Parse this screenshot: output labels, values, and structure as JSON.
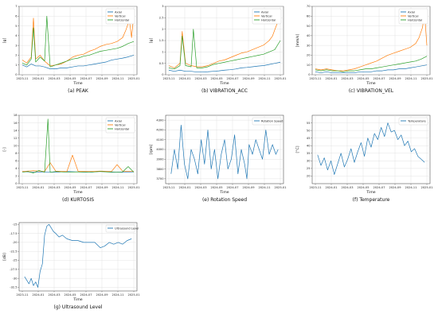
{
  "chart_data": [
    {
      "type": "line",
      "caption": "(a) PEAK",
      "xlabel": "Time",
      "ylabel": "[g]",
      "x_ticks": [
        "2023-11",
        "2024-01",
        "2024-03",
        "2024-05",
        "2024-07",
        "2024-09",
        "2024-11",
        "2025-01"
      ],
      "ylim": [
        0,
        7
      ],
      "y_ticks": [
        0,
        1,
        2,
        3,
        4,
        5,
        6,
        7
      ],
      "legend": "top-right",
      "grid": true,
      "series": [
        {
          "name": "Axial",
          "color": "#1f77b4",
          "t": [
            0,
            0.04,
            0.08,
            0.12,
            0.16,
            0.2,
            0.25,
            0.3,
            0.35,
            0.4,
            0.45,
            0.5,
            0.55,
            0.6,
            0.65,
            0.7,
            0.75,
            0.8,
            0.85,
            0.9,
            0.94,
            0.97,
            1.0
          ],
          "values": [
            1.0,
            0.8,
            1.1,
            0.9,
            0.9,
            0.8,
            0.6,
            0.6,
            0.7,
            0.7,
            0.8,
            0.9,
            0.9,
            1.0,
            1.1,
            1.2,
            1.3,
            1.5,
            1.6,
            1.7,
            1.8,
            1.9,
            2.0
          ]
        },
        {
          "name": "Vertical",
          "color": "#ff7f0e",
          "t": [
            0,
            0.04,
            0.08,
            0.1,
            0.12,
            0.16,
            0.2,
            0.25,
            0.3,
            0.35,
            0.4,
            0.45,
            0.5,
            0.55,
            0.6,
            0.65,
            0.7,
            0.75,
            0.8,
            0.85,
            0.9,
            0.93,
            0.96,
            0.98,
            1.0
          ],
          "values": [
            1.5,
            1.2,
            1.8,
            5.8,
            1.6,
            2.0,
            1.4,
            0.9,
            1.0,
            1.1,
            1.4,
            1.8,
            2.0,
            2.1,
            2.4,
            2.6,
            2.9,
            3.1,
            3.2,
            3.4,
            3.8,
            4.6,
            5.6,
            3.8,
            6.2
          ]
        },
        {
          "name": "Horizontal",
          "color": "#2ca02c",
          "t": [
            0,
            0.04,
            0.08,
            0.1,
            0.12,
            0.16,
            0.2,
            0.22,
            0.25,
            0.3,
            0.35,
            0.4,
            0.45,
            0.5,
            0.55,
            0.6,
            0.65,
            0.7,
            0.75,
            0.8,
            0.85,
            0.9,
            0.95,
            1.0
          ],
          "values": [
            1.2,
            1.0,
            1.6,
            4.8,
            1.3,
            1.8,
            1.4,
            6.0,
            0.8,
            1.0,
            1.2,
            1.4,
            1.6,
            1.7,
            1.9,
            2.0,
            2.2,
            2.4,
            2.5,
            2.6,
            2.7,
            2.9,
            3.2,
            3.4
          ]
        }
      ]
    },
    {
      "type": "line",
      "caption": "(b) VIBRATION_ACC",
      "xlabel": "Time",
      "ylabel": "[g]",
      "x_ticks": [
        "2023-11",
        "2024-01",
        "2024-03",
        "2024-05",
        "2024-07",
        "2024-09",
        "2024-11",
        "2025-01"
      ],
      "ylim": [
        0,
        3.0
      ],
      "y_ticks": [
        0.0,
        0.5,
        1.0,
        1.5,
        2.0,
        2.5,
        3.0
      ],
      "legend": "top-right",
      "grid": true,
      "series": [
        {
          "name": "Axial",
          "color": "#1f77b4",
          "t": [
            0,
            0.05,
            0.1,
            0.15,
            0.2,
            0.25,
            0.3,
            0.35,
            0.4,
            0.45,
            0.5,
            0.55,
            0.6,
            0.65,
            0.7,
            0.75,
            0.8,
            0.85,
            0.9,
            0.95,
            1.0
          ],
          "values": [
            0.2,
            0.15,
            0.2,
            0.15,
            0.15,
            0.12,
            0.12,
            0.13,
            0.15,
            0.17,
            0.2,
            0.22,
            0.25,
            0.3,
            0.32,
            0.35,
            0.38,
            0.4,
            0.45,
            0.5,
            0.55
          ]
        },
        {
          "name": "Vertical",
          "color": "#ff7f0e",
          "t": [
            0,
            0.05,
            0.1,
            0.12,
            0.15,
            0.2,
            0.25,
            0.3,
            0.35,
            0.4,
            0.45,
            0.5,
            0.55,
            0.6,
            0.65,
            0.7,
            0.75,
            0.8,
            0.85,
            0.9,
            0.93,
            0.96,
            1.0
          ],
          "values": [
            0.4,
            0.3,
            0.5,
            1.9,
            0.5,
            0.4,
            0.35,
            0.35,
            0.4,
            0.5,
            0.6,
            0.65,
            0.75,
            0.85,
            0.95,
            1.0,
            1.1,
            1.2,
            1.3,
            1.5,
            1.7,
            2.1,
            2.6
          ]
        },
        {
          "name": "Horizontal",
          "color": "#2ca02c",
          "t": [
            0,
            0.05,
            0.1,
            0.12,
            0.15,
            0.2,
            0.22,
            0.25,
            0.3,
            0.35,
            0.4,
            0.45,
            0.5,
            0.55,
            0.6,
            0.65,
            0.7,
            0.75,
            0.8,
            0.85,
            0.9,
            0.95,
            1.0
          ],
          "values": [
            0.3,
            0.25,
            0.4,
            1.7,
            0.4,
            0.35,
            2.0,
            0.3,
            0.3,
            0.35,
            0.45,
            0.5,
            0.55,
            0.6,
            0.65,
            0.7,
            0.75,
            0.8,
            0.85,
            0.9,
            1.0,
            1.1,
            1.5
          ]
        }
      ]
    },
    {
      "type": "line",
      "caption": "(c) VIBRATION_VEL",
      "xlabel": "Time",
      "ylabel": "[mm/s]",
      "x_ticks": [
        "2023-11",
        "2024-01",
        "2024-03",
        "2024-05",
        "2024-07",
        "2024-09",
        "2024-11",
        "2025-01"
      ],
      "ylim": [
        0,
        70
      ],
      "y_ticks": [
        0,
        10,
        20,
        30,
        40,
        50,
        60,
        70
      ],
      "legend": "top-right",
      "grid": true,
      "series": [
        {
          "name": "Axial",
          "color": "#1f77b4",
          "t": [
            0,
            0.05,
            0.1,
            0.15,
            0.2,
            0.25,
            0.3,
            0.35,
            0.4,
            0.45,
            0.5,
            0.55,
            0.6,
            0.65,
            0.7,
            0.75,
            0.8,
            0.85,
            0.9,
            0.95,
            1.0
          ],
          "values": [
            3,
            2,
            3,
            2,
            2,
            2,
            2,
            2,
            3,
            3,
            3,
            4,
            4,
            5,
            5,
            6,
            6,
            7,
            8,
            9,
            10
          ]
        },
        {
          "name": "Vertical",
          "color": "#ff7f0e",
          "t": [
            0,
            0.05,
            0.1,
            0.15,
            0.2,
            0.25,
            0.3,
            0.35,
            0.4,
            0.45,
            0.5,
            0.55,
            0.6,
            0.65,
            0.7,
            0.75,
            0.8,
            0.85,
            0.9,
            0.93,
            0.96,
            0.98,
            1.0
          ],
          "values": [
            6,
            5,
            6,
            5,
            4,
            4,
            5,
            6,
            8,
            10,
            12,
            14,
            17,
            20,
            22,
            24,
            26,
            28,
            32,
            38,
            48,
            62,
            30
          ]
        },
        {
          "name": "Horizontal",
          "color": "#2ca02c",
          "t": [
            0,
            0.05,
            0.1,
            0.15,
            0.2,
            0.25,
            0.3,
            0.35,
            0.4,
            0.45,
            0.5,
            0.55,
            0.6,
            0.65,
            0.7,
            0.75,
            0.8,
            0.85,
            0.9,
            0.95,
            1.0
          ],
          "values": [
            5,
            4,
            5,
            4,
            4,
            3,
            4,
            4,
            5,
            6,
            6,
            7,
            8,
            9,
            10,
            11,
            12,
            13,
            14,
            16,
            19
          ]
        }
      ]
    },
    {
      "type": "line",
      "caption": "(d) KURTOSIS",
      "xlabel": "Time",
      "ylabel": "[-]",
      "x_ticks": [
        "2023-11",
        "2024-01",
        "2024-03",
        "2024-05",
        "2024-07",
        "2024-09",
        "2024-11",
        "2025-01"
      ],
      "ylim": [
        0,
        18
      ],
      "y_ticks": [
        0,
        2,
        4,
        6,
        8,
        10,
        12,
        14,
        16,
        18
      ],
      "legend": "top-right",
      "grid": true,
      "series": [
        {
          "name": "Axial",
          "color": "#1f77b4",
          "t": [
            0,
            0.1,
            0.2,
            0.3,
            0.4,
            0.5,
            0.6,
            0.7,
            0.8,
            0.9,
            1.0
          ],
          "values": [
            3.2,
            3.0,
            3.1,
            3.0,
            3.2,
            3.1,
            3.0,
            3.2,
            3.1,
            3.0,
            3.1
          ]
        },
        {
          "name": "Vertical",
          "color": "#ff7f0e",
          "t": [
            0,
            0.1,
            0.2,
            0.25,
            0.3,
            0.4,
            0.45,
            0.5,
            0.6,
            0.7,
            0.8,
            0.85,
            0.9,
            1.0
          ],
          "values": [
            3.2,
            3.4,
            3.2,
            5.5,
            3.3,
            3.2,
            7.5,
            3.3,
            3.2,
            3.3,
            3.2,
            5.0,
            3.3,
            3.2
          ]
        },
        {
          "name": "Horizontal",
          "color": "#2ca02c",
          "t": [
            0,
            0.05,
            0.1,
            0.15,
            0.2,
            0.23,
            0.25,
            0.3,
            0.4,
            0.5,
            0.6,
            0.7,
            0.8,
            0.9,
            0.95,
            1.0
          ],
          "values": [
            3.0,
            3.2,
            2.8,
            3.5,
            3.0,
            17.0,
            3.0,
            3.2,
            3.0,
            3.1,
            3.0,
            3.2,
            3.0,
            3.1,
            4.5,
            3.0
          ]
        }
      ]
    },
    {
      "type": "line",
      "caption": "(e) Rotation Speed",
      "xlabel": "Time",
      "ylabel": "[rpm]",
      "x_ticks": [
        "2023-11",
        "2024-01",
        "2024-03",
        "2024-05",
        "2024-07",
        "2024-09",
        "2024-11",
        "2025-01"
      ],
      "ylim": [
        3650,
        4350
      ],
      "y_ticks": [
        3700,
        3800,
        3900,
        4000,
        4100,
        4200,
        4300
      ],
      "legend": "top-right",
      "grid": true,
      "series": [
        {
          "name": "Rotation Speed",
          "color": "#1f77b4",
          "t": [
            0.02,
            0.05,
            0.08,
            0.11,
            0.14,
            0.17,
            0.2,
            0.23,
            0.26,
            0.29,
            0.32,
            0.35,
            0.38,
            0.41,
            0.44,
            0.47,
            0.5,
            0.53,
            0.56,
            0.59,
            0.62,
            0.65,
            0.68,
            0.7,
            0.72,
            0.75,
            0.78,
            0.81,
            0.84,
            0.87,
            0.9,
            0.93,
            0.96,
            0.98
          ],
          "values": [
            3750,
            4000,
            3800,
            4250,
            3850,
            3700,
            4000,
            3900,
            3750,
            4100,
            3850,
            4200,
            3800,
            4000,
            3700,
            3950,
            4100,
            3800,
            3900,
            4150,
            3750,
            4000,
            3850,
            3700,
            4050,
            3950,
            4100,
            4000,
            3900,
            4200,
            3950,
            4050,
            3950,
            4000
          ]
        }
      ]
    },
    {
      "type": "line",
      "caption": "(f) Temperature",
      "xlabel": "Time",
      "ylabel": "[°C]",
      "x_ticks": [
        "2023-11",
        "2024-01",
        "2024-03",
        "2024-05",
        "2024-07",
        "2024-09",
        "2024-11",
        "2025-01"
      ],
      "ylim": [
        15,
        60
      ],
      "y_ticks": [
        20,
        25,
        30,
        35,
        40,
        45,
        50,
        55
      ],
      "legend": "top-right",
      "grid": true,
      "series": [
        {
          "name": "Temperature",
          "color": "#1f77b4",
          "t": [
            0.02,
            0.05,
            0.08,
            0.11,
            0.14,
            0.17,
            0.2,
            0.23,
            0.26,
            0.29,
            0.32,
            0.35,
            0.38,
            0.41,
            0.44,
            0.47,
            0.5,
            0.53,
            0.56,
            0.59,
            0.62,
            0.65,
            0.68,
            0.71,
            0.74,
            0.77,
            0.8,
            0.83,
            0.86,
            0.89,
            0.92,
            0.95,
            0.98
          ],
          "values": [
            34,
            27,
            32,
            24,
            30,
            21,
            28,
            35,
            26,
            31,
            38,
            29,
            36,
            42,
            33,
            45,
            39,
            48,
            44,
            52,
            46,
            55,
            49,
            50,
            44,
            47,
            40,
            43,
            36,
            38,
            33,
            31,
            29
          ]
        }
      ]
    },
    {
      "type": "line",
      "caption": "(g) Ultrasound Level",
      "xlabel": "Time",
      "ylabel": "[dB]",
      "x_ticks": [
        "2023-11",
        "2024-01",
        "2024-03",
        "2024-05",
        "2024-07",
        "2024-09",
        "2024-11",
        "2025-01"
      ],
      "ylim": [
        -33.5,
        -14.5
      ],
      "y_ticks": [
        -15.0,
        -17.5,
        -20.0,
        -22.5,
        -25.0,
        -27.5,
        -30.0,
        -32.5
      ],
      "legend": "top-right",
      "grid": true,
      "series": [
        {
          "name": "Ultrasound Level",
          "color": "#1f77b4",
          "t": [
            0.02,
            0.04,
            0.06,
            0.08,
            0.1,
            0.12,
            0.14,
            0.16,
            0.18,
            0.2,
            0.22,
            0.24,
            0.26,
            0.28,
            0.3,
            0.33,
            0.36,
            0.4,
            0.45,
            0.5,
            0.55,
            0.6,
            0.65,
            0.7,
            0.74,
            0.78,
            0.82,
            0.86,
            0.9,
            0.94,
            0.98
          ],
          "values": [
            -29.5,
            -30.5,
            -31.5,
            -30.0,
            -32.0,
            -31.0,
            -32.5,
            -28.0,
            -26.0,
            -18.0,
            -15.5,
            -15.0,
            -16.0,
            -17.0,
            -17.5,
            -18.5,
            -18.0,
            -19.0,
            -19.5,
            -19.5,
            -20.0,
            -20.0,
            -20.0,
            -21.5,
            -21.0,
            -20.0,
            -20.5,
            -20.0,
            -20.5,
            -19.5,
            -19.0
          ]
        }
      ]
    }
  ]
}
